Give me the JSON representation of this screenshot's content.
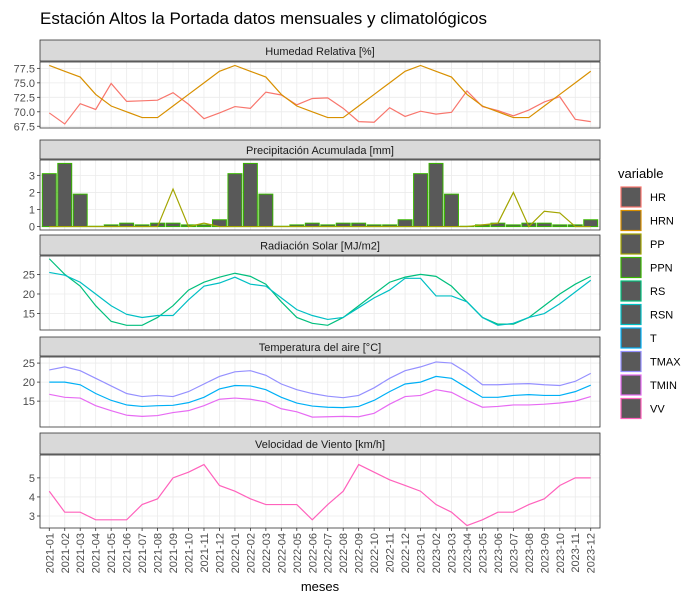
{
  "chart_data": {
    "type": "facet",
    "title": "Estación Altos la Portada datos mensuales y climatológicos",
    "xlabel": "meses",
    "legend_title": "variable",
    "categories": [
      "2021-01",
      "2021-02",
      "2021-03",
      "2021-04",
      "2021-05",
      "2021-06",
      "2021-07",
      "2021-08",
      "2021-09",
      "2021-10",
      "2021-11",
      "2021-12",
      "2022-01",
      "2022-02",
      "2022-03",
      "2022-04",
      "2022-05",
      "2022-06",
      "2022-07",
      "2022-08",
      "2022-09",
      "2022-10",
      "2022-11",
      "2022-12",
      "2023-01",
      "2023-02",
      "2023-03",
      "2023-04",
      "2023-05",
      "2023-06",
      "2023-07",
      "2023-08",
      "2023-09",
      "2023-10",
      "2023-11",
      "2023-12"
    ],
    "panels": [
      {
        "title": "Humedad Relativa [%]",
        "ylim": [
          67.2,
          78.6
        ],
        "yticks": [
          67.5,
          {
            "value": 70,
            "label": "70.0"
          },
          72.5,
          {
            "value": 75,
            "label": "75.0"
          },
          77.5
        ],
        "series": [
          {
            "name": "HR",
            "color": "#F8766D",
            "type": "line",
            "values": [
              69.8,
              67.9,
              71.4,
              70.4,
              74.9,
              71.8,
              71.9,
              72.0,
              73.3,
              71.3,
              68.8,
              69.8,
              70.9,
              70.6,
              73.4,
              72.9,
              71.2,
              72.3,
              72.4,
              70.6,
              68.3,
              68.2,
              70.7,
              69.2,
              70.1,
              69.6,
              69.9,
              73.6,
              70.9,
              70.2,
              69.3,
              70.3,
              71.7,
              72.6,
              68.7,
              68.3
            ]
          },
          {
            "name": "HRN",
            "color": "#D89000",
            "type": "line",
            "values": [
              78,
              77,
              76,
              73,
              71,
              70,
              69,
              69,
              71,
              73,
              75,
              77,
              78,
              77,
              76,
              73,
              71,
              70,
              69,
              69,
              71,
              73,
              75,
              77,
              78,
              77,
              76,
              73,
              71,
              70,
              69,
              69,
              71,
              73,
              75,
              77
            ]
          }
        ]
      },
      {
        "title": "Precipitación Acumulada [mm]",
        "ylim": [
          -0.2,
          3.9
        ],
        "yticks": [
          0,
          1,
          2,
          3
        ],
        "series": [
          {
            "name": "PP",
            "color": "#A3A500",
            "type": "line",
            "values": [
              0,
              0,
              0,
              0,
              0,
              0,
              0,
              0,
              2.2,
              0,
              0.2,
              0,
              0,
              0,
              0,
              0,
              0,
              0,
              0,
              0,
              0,
              0,
              0,
              0,
              0,
              0,
              0,
              0,
              0.1,
              0.2,
              2.0,
              0,
              0.9,
              0.8,
              0,
              0
            ]
          },
          {
            "name": "PPN",
            "color": "#39B600",
            "type": "bar",
            "values": [
              3.1,
              3.7,
              1.9,
              0.02,
              0.1,
              0.2,
              0.1,
              0.2,
              0.2,
              0.1,
              0.1,
              0.4,
              3.1,
              3.7,
              1.9,
              0.02,
              0.1,
              0.2,
              0.1,
              0.2,
              0.2,
              0.1,
              0.1,
              0.4,
              3.1,
              3.7,
              1.9,
              0.02,
              0.1,
              0.2,
              0.1,
              0.2,
              0.2,
              0.1,
              0.1,
              0.4
            ]
          }
        ]
      },
      {
        "title": "Radiación Solar [MJ/m2]",
        "ylim": [
          10.8,
          29.7
        ],
        "yticks": [
          15,
          20,
          25
        ],
        "series": [
          {
            "name": "RS",
            "color": "#00BF7D",
            "type": "line",
            "values": [
              29,
              25,
              22,
              17,
              13,
              12,
              12,
              14,
              17,
              21,
              23,
              24.3,
              25.3,
              24.5,
              22.5,
              18,
              14,
              12.5,
              12,
              14,
              17,
              20,
              23,
              24.3,
              25,
              24.5,
              22,
              18,
              14,
              12.3,
              12.3,
              14,
              17,
              20,
              22.5,
              24.5
            ]
          },
          {
            "name": "RSN",
            "color": "#00BFC4",
            "type": "line",
            "values": [
              25.5,
              24.8,
              23,
              20,
              17,
              14.8,
              14,
              14.5,
              14.5,
              18.5,
              22,
              22.8,
              24.3,
              22.5,
              22,
              19,
              16,
              14.5,
              13.5,
              14,
              16.5,
              19,
              21,
              24,
              24,
              19.5,
              19.5,
              18,
              14,
              12,
              12.5,
              14,
              15,
              17.5,
              20.5,
              23.5
            ]
          }
        ]
      },
      {
        "title": "Temperatura del aire [°C]",
        "ylim": [
          8.2,
          26.6
        ],
        "yticks": [
          15,
          20,
          25
        ],
        "series": [
          {
            "name": "T",
            "color": "#00B0F6",
            "type": "line",
            "values": [
              20,
              20,
              19.3,
              17,
              15.2,
              14,
              13.6,
              13.8,
              13.9,
              14.6,
              16,
              18.2,
              19.1,
              19,
              18,
              16,
              14.5,
              13.7,
              13.4,
              13.3,
              13.6,
              15.2,
              17.5,
              19.5,
              20,
              21.5,
              21,
              18.5,
              16,
              16,
              16.5,
              16.7,
              16.5,
              16.5,
              17.5,
              19.2
            ]
          },
          {
            "name": "TMAX",
            "color": "#9590FF",
            "type": "line",
            "values": [
              23.2,
              24,
              23,
              21,
              19,
              17,
              16.2,
              16.5,
              16.2,
              17.5,
              19.5,
              21.5,
              22.7,
              23,
              21.8,
              19.5,
              18,
              17,
              16.3,
              15.9,
              16.5,
              18.5,
              21,
              23,
              24,
              25.3,
              25,
              22.5,
              19.3,
              19.3,
              19.5,
              19.6,
              19.3,
              19.1,
              20.2,
              22.3
            ]
          },
          {
            "name": "TMIN",
            "color": "#E76BF3",
            "type": "line",
            "values": [
              16.8,
              16,
              15.8,
              13.8,
              12.5,
              11.3,
              11,
              11.2,
              12,
              12.5,
              13.8,
              15.5,
              15.8,
              15.5,
              14.8,
              13,
              12.2,
              10.8,
              10.9,
              11,
              10.9,
              11.8,
              14.2,
              16.2,
              16.5,
              18,
              17.3,
              15.2,
              13.4,
              13.6,
              14,
              14,
              14.2,
              14.5,
              15,
              16.2
            ]
          }
        ]
      },
      {
        "title": "Velocidad de Viento [km/h]",
        "ylim": [
          2.37,
          6.2
        ],
        "yticks": [
          3,
          4,
          5
        ],
        "series": [
          {
            "name": "VV",
            "color": "#FF62BC",
            "type": "line",
            "values": [
              4.3,
              3.2,
              3.2,
              2.8,
              2.8,
              2.8,
              3.6,
              3.9,
              5.0,
              5.3,
              5.7,
              4.6,
              4.3,
              3.9,
              3.6,
              3.6,
              3.6,
              2.8,
              3.6,
              4.3,
              5.7,
              5.3,
              4.9,
              4.6,
              4.3,
              3.6,
              3.2,
              2.5,
              2.8,
              3.2,
              3.2,
              3.6,
              3.9,
              4.6,
              5.0,
              5.0
            ]
          }
        ]
      }
    ]
  }
}
